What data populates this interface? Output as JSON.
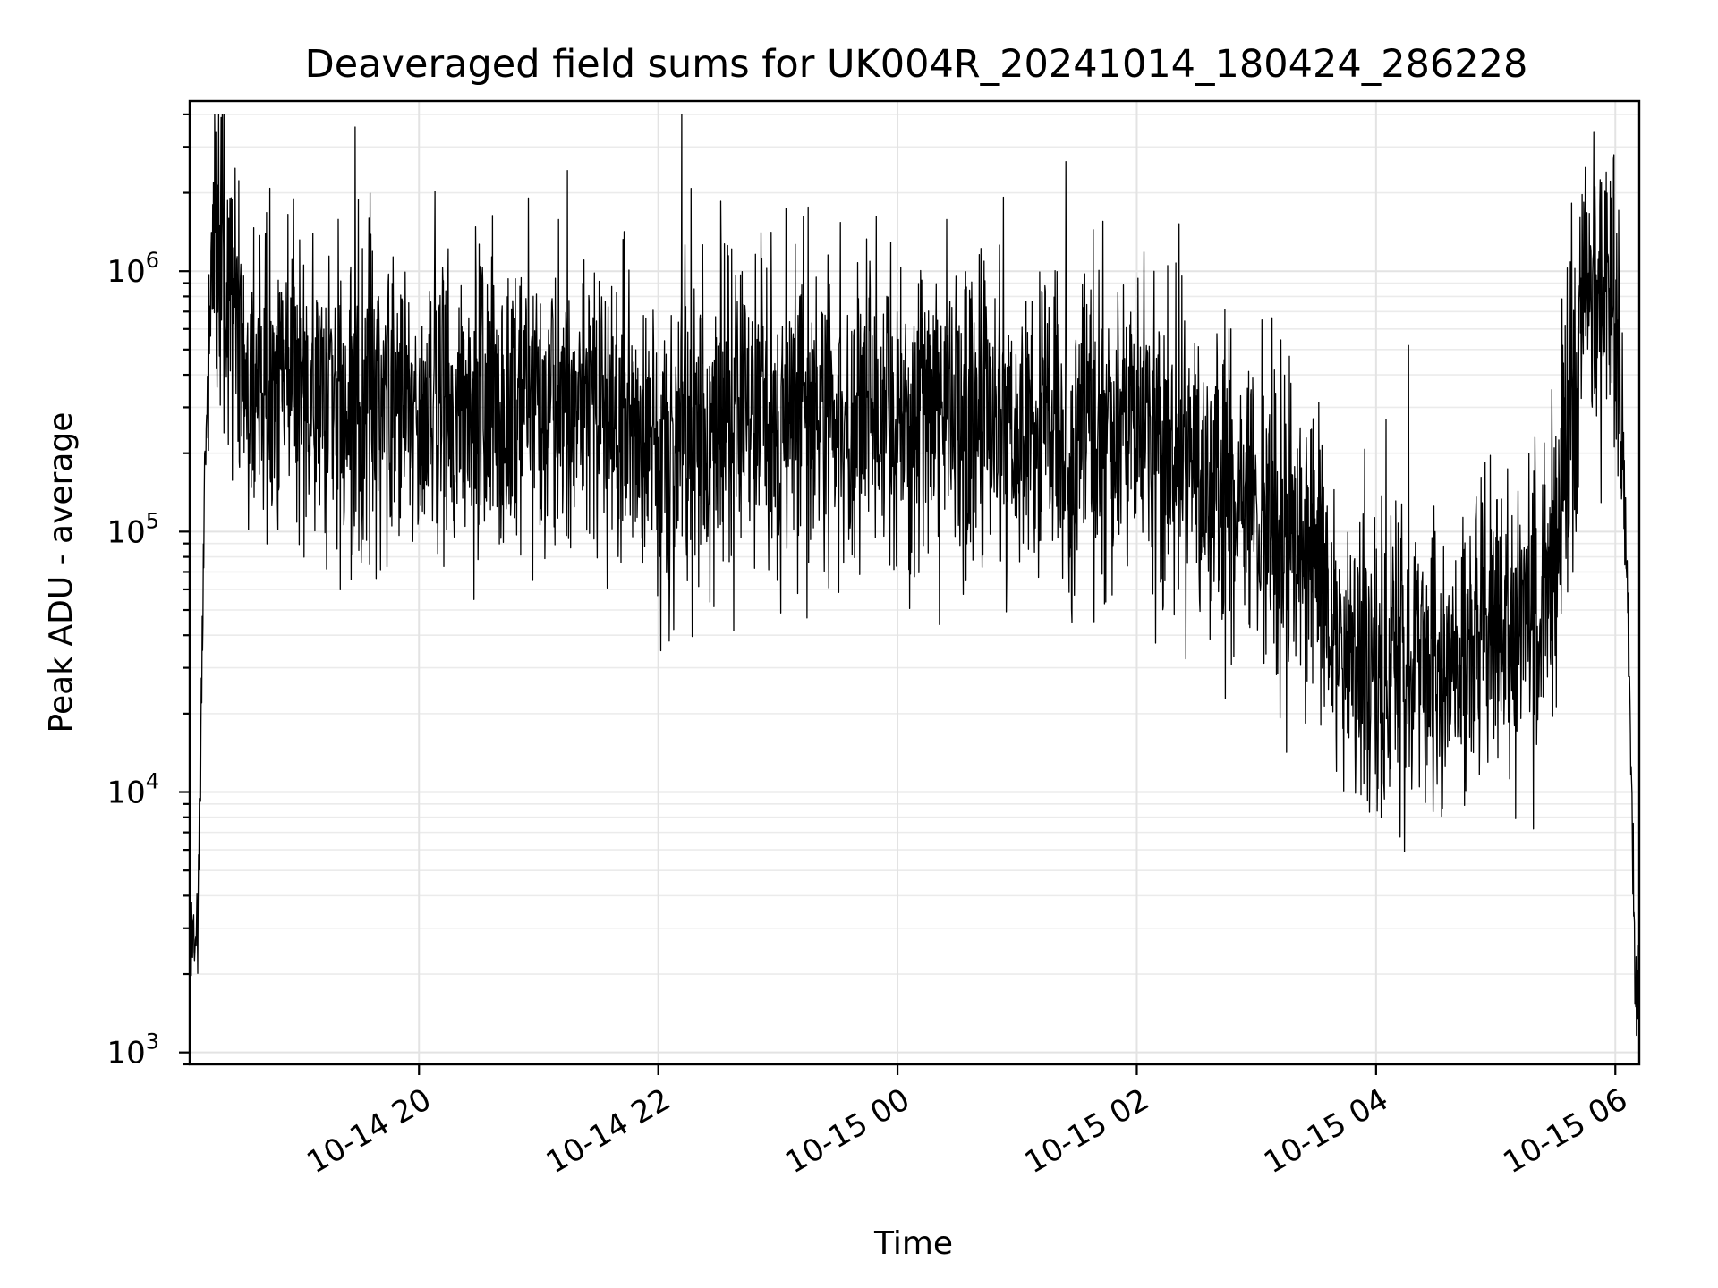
{
  "chart_data": {
    "type": "line",
    "title": "Deaveraged field sums for UK004R_20241014_180424_286228",
    "xlabel": "Time",
    "ylabel": "Peak ADU - average",
    "yscale": "log",
    "xlim": [
      "2024-10-14 18:05",
      "2024-10-15 06:12"
    ],
    "ylim": [
      900,
      4500000
    ],
    "x_ticks": [
      {
        "value": "2024-10-14 20:00",
        "label": "10-14 20"
      },
      {
        "value": "2024-10-14 22:00",
        "label": "10-14 22"
      },
      {
        "value": "2024-10-15 00:00",
        "label": "10-15 00"
      },
      {
        "value": "2024-10-15 02:00",
        "label": "10-15 02"
      },
      {
        "value": "2024-10-15 04:00",
        "label": "10-15 04"
      },
      {
        "value": "2024-10-15 06:00",
        "label": "10-15 06"
      }
    ],
    "y_ticks": [
      {
        "value": 1000,
        "base": "10",
        "exp": "3"
      },
      {
        "value": 10000,
        "base": "10",
        "exp": "4"
      },
      {
        "value": 100000,
        "base": "10",
        "exp": "5"
      },
      {
        "value": 1000000,
        "base": "10",
        "exp": "6"
      }
    ],
    "grid": true,
    "color": "#000000",
    "series": [
      {
        "values_sampled": [
          [
            "2024-10-14 18:05",
            1600
          ],
          [
            "2024-10-14 18:07",
            3200
          ],
          [
            "2024-10-14 18:09",
            2400
          ],
          [
            "2024-10-14 18:12",
            90000
          ],
          [
            "2024-10-14 18:15",
            800000
          ],
          [
            "2024-10-14 18:20",
            1500000
          ],
          [
            "2024-10-14 18:30",
            400000
          ],
          [
            "2024-10-14 19:00",
            350000
          ],
          [
            "2024-10-14 19:30",
            300000
          ],
          [
            "2024-10-14 20:00",
            320000
          ],
          [
            "2024-10-14 20:30",
            300000
          ],
          [
            "2024-10-14 21:00",
            330000
          ],
          [
            "2024-10-14 21:30",
            300000
          ],
          [
            "2024-10-14 22:00",
            200000
          ],
          [
            "2024-10-14 22:30",
            250000
          ],
          [
            "2024-10-14 23:00",
            300000
          ],
          [
            "2024-10-14 23:30",
            280000
          ],
          [
            "2024-10-15 00:00",
            300000
          ],
          [
            "2024-10-15 00:30",
            280000
          ],
          [
            "2024-10-15 01:00",
            250000
          ],
          [
            "2024-10-15 01:30",
            270000
          ],
          [
            "2024-10-15 02:00",
            250000
          ],
          [
            "2024-10-15 02:30",
            180000
          ],
          [
            "2024-10-15 03:00",
            120000
          ],
          [
            "2024-10-15 03:30",
            80000
          ],
          [
            "2024-10-15 03:45",
            35000
          ],
          [
            "2024-10-15 04:00",
            30000
          ],
          [
            "2024-10-15 04:30",
            28000
          ],
          [
            "2024-10-15 05:00",
            40000
          ],
          [
            "2024-10-15 05:20",
            45000
          ],
          [
            "2024-10-15 05:30",
            100000
          ],
          [
            "2024-10-15 05:45",
            700000
          ],
          [
            "2024-10-15 06:00",
            700000
          ],
          [
            "2024-10-15 06:05",
            120000
          ],
          [
            "2024-10-15 06:08",
            10000
          ],
          [
            "2024-10-15 06:10",
            2000
          ],
          [
            "2024-10-15 06:12",
            1300
          ]
        ]
      }
    ]
  }
}
